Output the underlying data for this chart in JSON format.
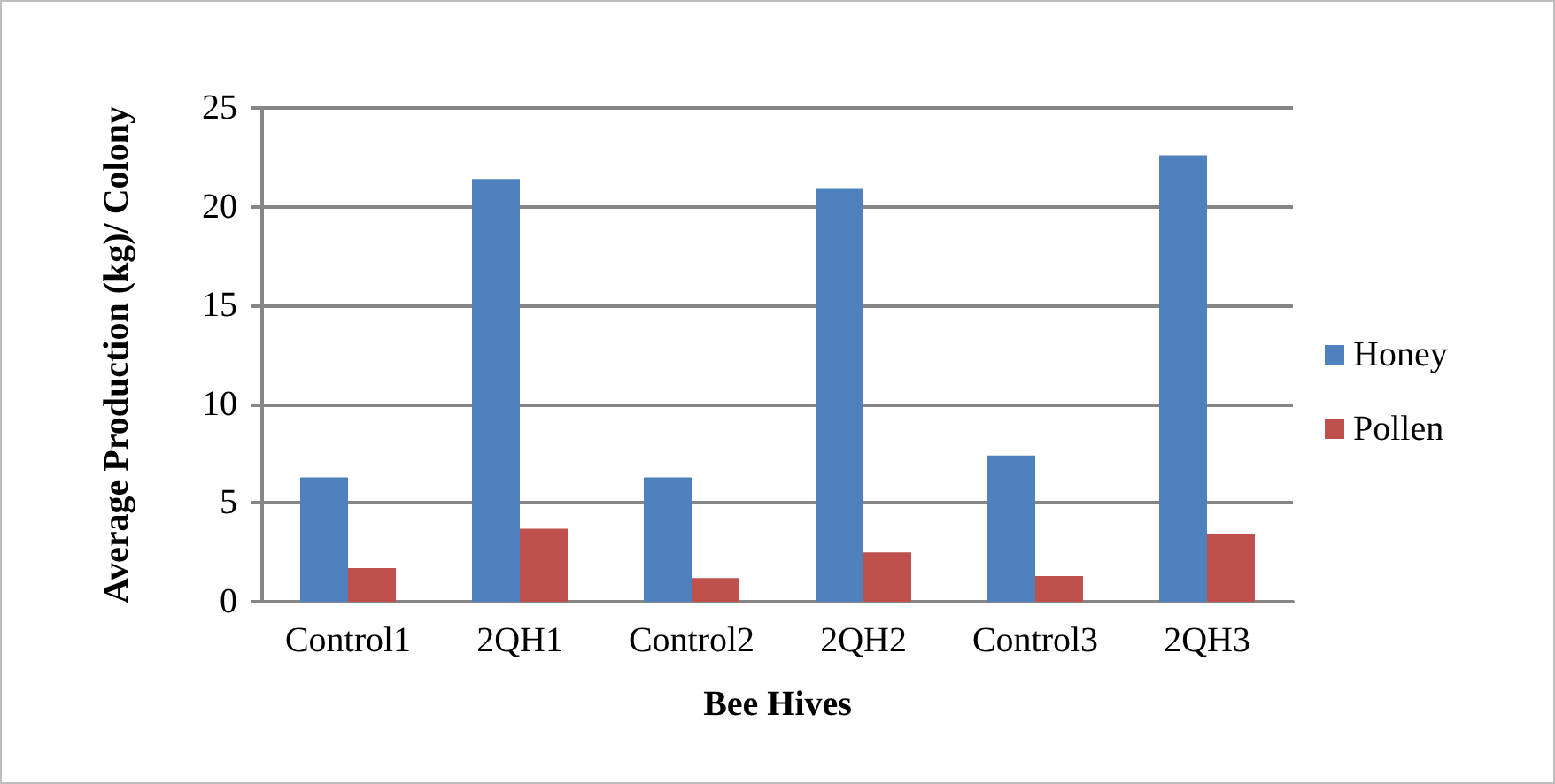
{
  "chart_data": {
    "type": "bar",
    "xlabel": "Bee Hives",
    "ylabel": "Average Production (kg)/ Colony",
    "categories": [
      "Control1",
      "2QH1",
      "Control2",
      "2QH2",
      "Control3",
      "2QH3"
    ],
    "series": [
      {
        "name": "Honey",
        "color": "#4f81bd",
        "values": [
          6.3,
          21.4,
          6.3,
          20.9,
          7.4,
          22.6
        ]
      },
      {
        "name": "Pollen",
        "color": "#c0504d",
        "values": [
          1.7,
          3.7,
          1.2,
          2.5,
          1.3,
          3.4
        ]
      }
    ],
    "ylim": [
      0,
      25
    ],
    "yticks": [
      0,
      5,
      10,
      15,
      20,
      25
    ],
    "grid": "y",
    "legend": "right"
  }
}
